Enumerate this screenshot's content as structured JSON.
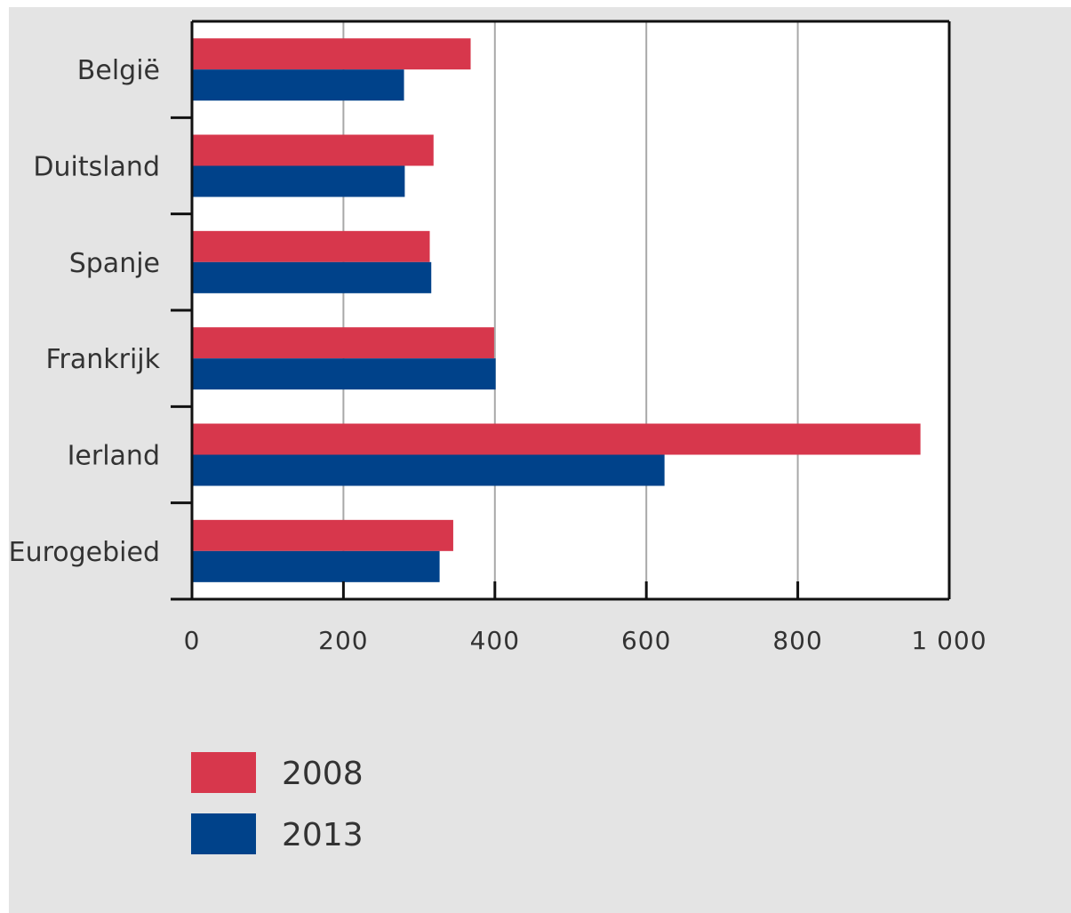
{
  "chart_data": {
    "type": "bar",
    "orientation": "horizontal",
    "title": "",
    "xlabel": "",
    "ylabel": "",
    "categories": [
      "België",
      "Duitsland",
      "Spanje",
      "Frankrijk",
      "Ierland",
      "Eurogebied"
    ],
    "series": [
      {
        "name": "2008",
        "color": "#d7374c",
        "values": [
          368,
          319,
          314,
          399,
          962,
          345
        ]
      },
      {
        "name": "2013",
        "color": "#00428a",
        "values": [
          280,
          281,
          316,
          401,
          624,
          327
        ]
      }
    ],
    "xlim": [
      0,
      1000
    ],
    "xticks": [
      0,
      200,
      400,
      600,
      800,
      1000
    ],
    "xtick_labels": [
      "0",
      "200",
      "400",
      "600",
      "800",
      "1 000"
    ],
    "grid": "vertical",
    "legend_position": "bottom-left"
  }
}
